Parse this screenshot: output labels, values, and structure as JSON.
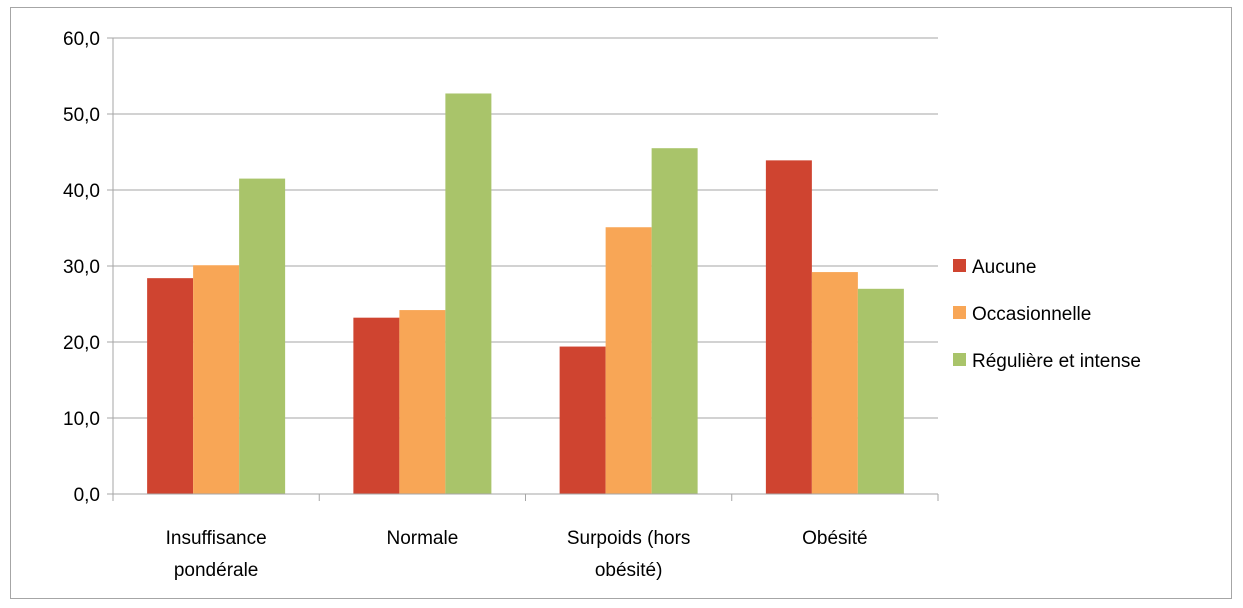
{
  "chart_data": {
    "type": "bar",
    "title": "",
    "xlabel": "",
    "ylabel": "",
    "categories": [
      [
        "Insuffisance",
        "pondérale"
      ],
      [
        "Normale"
      ],
      [
        "Surpoids (hors",
        "obésité)"
      ],
      [
        "Obésité"
      ]
    ],
    "series": [
      {
        "name": "Aucune",
        "color": "#cf4430",
        "values": [
          28.4,
          23.2,
          19.4,
          43.9
        ]
      },
      {
        "name": "Occasionnelle",
        "color": "#f8a656",
        "values": [
          30.1,
          24.2,
          35.1,
          29.2
        ]
      },
      {
        "name": "Régulière et intense",
        "color": "#a9c46a",
        "values": [
          41.5,
          52.7,
          45.5,
          27.0
        ]
      }
    ],
    "ylim": [
      0,
      60
    ],
    "yticks": [
      "0,0",
      "10,0",
      "20,0",
      "30,0",
      "40,0",
      "50,0",
      "60,0"
    ],
    "grid": true,
    "legend_position": "right"
  }
}
